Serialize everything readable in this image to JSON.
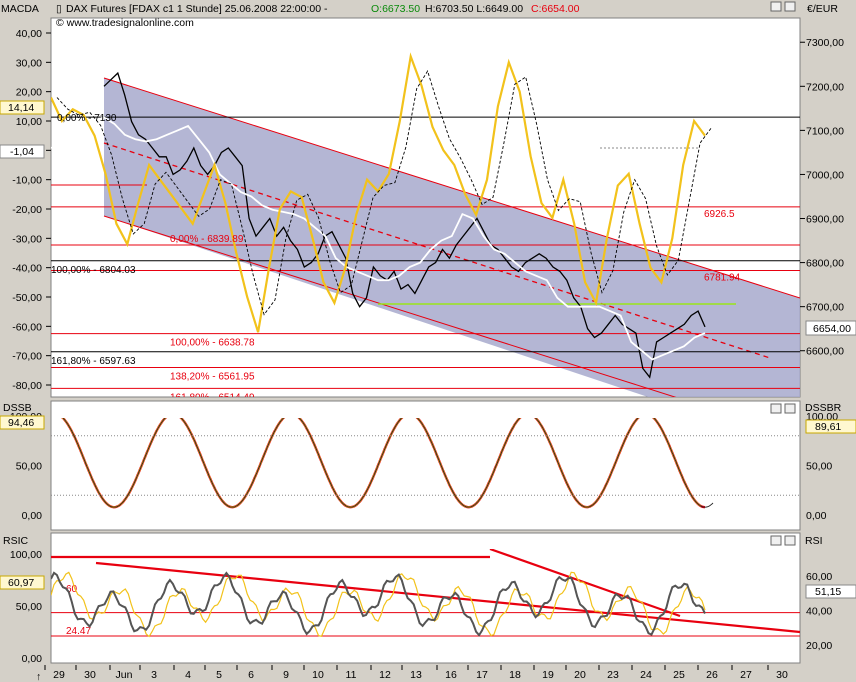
{
  "header": {
    "indicator_left": "MACDA",
    "symbol_text": "DAX Futures [FDAX c1  1 Stunde] 25.06.2008 22:00:00 -",
    "open_text": "O:6673.50",
    "hl_text": "H:6703.50 L:6649.00",
    "close_text": "C:6654.00",
    "copyright": "© www.tradesignalonline.com",
    "currency": "€/EUR"
  },
  "panel_labels": {
    "dssb_left": "DSSB",
    "dssb_right": "DSSBR",
    "rsic_left": "RSIC",
    "rsi_right": "RSI"
  },
  "value_boxes": {
    "macd_top": "14,14",
    "macd_signal": "-1,04",
    "price_last": "6654,00",
    "dssb_left": "94,46",
    "dssb_right": "89,61",
    "rsic_left": "60,97",
    "rsi_right": "51,15"
  },
  "colors": {
    "bg": "#ffffff",
    "channel_fill": "#a7a9cc",
    "price": "#000000",
    "macd": "#f2c21b",
    "signal": "#000000",
    "white_line": "#ffffff",
    "red": "#e8000f",
    "green": "#99e61a",
    "grey_rsi": "#555555"
  },
  "chart_data": [
    {
      "type": "line",
      "title": "DAX Futures [FDAX c1  1 Stunde] 25.06.2008 22:00:00",
      "x_dates": [
        "29",
        "30",
        "Jun",
        "3",
        "4",
        "5",
        "6",
        "9",
        "10",
        "11",
        "12",
        "13",
        "16",
        "17",
        "18",
        "19",
        "20",
        "23",
        "24",
        "25",
        "26",
        "27",
        "30"
      ],
      "y_left_ticks": [
        "40,00",
        "30,00",
        "20,00",
        "10,00",
        "0,00",
        "-10,00",
        "-20,00",
        "-30,00",
        "-40,00",
        "-50,00",
        "-60,00",
        "-70,00",
        "-80,00"
      ],
      "y_right_ticks": [
        "7300,00",
        "7200,00",
        "7100,00",
        "7000,00",
        "6900,00",
        "6800,00",
        "6700,00",
        "6600,00"
      ],
      "ylim_price": [
        6495,
        7355
      ],
      "annotations": [
        {
          "text": "0,00% - 7130",
          "price": 7130
        },
        {
          "text": "0,00% - 6839.89",
          "price": 6839.89
        },
        {
          "text": "100,00% - 6804.03",
          "price": 6804.03
        },
        {
          "text": "100,00% - 6638.78",
          "price": 6638.78
        },
        {
          "text": "161,80% - 6597.63",
          "price": 6597.63
        },
        {
          "text": "138,20% - 6561.95",
          "price": 6561.95
        },
        {
          "text": "161,80% - 6514.49",
          "price": 6514.49
        },
        {
          "text": "6926.5",
          "price": 6926.5
        },
        {
          "text": "6781.94",
          "price": 6781.94
        }
      ],
      "price_series": [
        7200,
        7215,
        7230,
        7180,
        7120,
        7090,
        7080,
        7060,
        7040,
        7040,
        7000,
        7010,
        7030,
        7060,
        7020,
        7000,
        7020,
        7050,
        7060,
        7040,
        7020,
        6900,
        6860,
        6880,
        6900,
        6860,
        6880,
        6850,
        6830,
        6790,
        6800,
        6820,
        6860,
        6870,
        6840,
        6810,
        6730,
        6700,
        6720,
        6790,
        6770,
        6760,
        6780,
        6740,
        6750,
        6730,
        6760,
        6790,
        6800,
        6830,
        6810,
        6840,
        6860,
        6880,
        6900,
        6870,
        6840,
        6830,
        6810,
        6790,
        6780,
        6800,
        6810,
        6820,
        6810,
        6790,
        6780,
        6760,
        6720,
        6700,
        6650,
        6630,
        6640,
        6660,
        6680,
        6660,
        6650,
        6640,
        6560,
        6540,
        6620,
        6630,
        6640,
        6650,
        6660,
        6680,
        6690,
        6654
      ],
      "white_series": [
        7060,
        7070,
        7100,
        7110,
        7120,
        7130,
        7115,
        7090,
        7080,
        7075,
        7080,
        7090,
        7100,
        7110,
        7080,
        7050,
        7000,
        6980,
        6960,
        6950,
        6930,
        6920,
        6915,
        6910,
        6900,
        6880,
        6860,
        6810,
        6790,
        6780,
        6770,
        6760,
        6760,
        6770,
        6790,
        6800,
        6830,
        6850,
        6860,
        6910,
        6900,
        6860,
        6830,
        6820,
        6800,
        6780,
        6770,
        6760,
        6720,
        6700,
        6700,
        6700,
        6700,
        6690,
        6680,
        6620,
        6600,
        6580,
        6590,
        6600,
        6610,
        6630,
        6640
      ]
    },
    {
      "type": "line",
      "title": "DSSB",
      "y_ticks": [
        "100,00",
        "50,00",
        "0,00"
      ],
      "ylim": [
        -15,
        115
      ],
      "cycles_peak_to_trough": 11,
      "last_values": {
        "dssb": 94.46,
        "dssbr": 89.61
      }
    },
    {
      "type": "line",
      "title": "RSIC",
      "y_ticks_left": [
        "100,00",
        "50,00",
        "0,00"
      ],
      "y_ticks_right": [
        "60,00",
        "40,00",
        "20,00"
      ],
      "levels": [
        {
          "text": "60",
          "value": 60
        },
        {
          "text": "24.47",
          "value": 24.47
        }
      ],
      "ylim": [
        -5,
        105
      ],
      "last_values": {
        "rsic": 60.97,
        "rsi": 51.15
      }
    }
  ]
}
